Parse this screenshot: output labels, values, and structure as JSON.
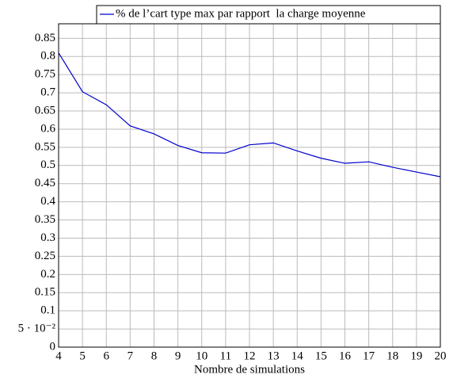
{
  "chart_data": {
    "type": "line",
    "x": [
      4,
      5,
      6,
      7,
      8,
      9,
      10,
      11,
      12,
      13,
      14,
      15,
      16,
      17,
      18,
      19,
      20
    ],
    "series": [
      {
        "name": "% de l’cart type max par rapport  la charge moyenne",
        "color": "#0000cc",
        "values": [
          0.81,
          0.703,
          0.667,
          0.609,
          0.587,
          0.555,
          0.535,
          0.534,
          0.557,
          0.562,
          0.54,
          0.52,
          0.506,
          0.51,
          0.495,
          0.482,
          0.469
        ]
      }
    ],
    "xlabel": "Nombre de simulations",
    "xlim": [
      4,
      20
    ],
    "xticks": [
      4,
      5,
      6,
      7,
      8,
      9,
      10,
      11,
      12,
      13,
      14,
      15,
      16,
      17,
      18,
      19,
      20
    ],
    "ylim": [
      0,
      0.89
    ],
    "yticks": [
      0,
      {
        "value": 0.05,
        "label": "5 · 10⁻²"
      },
      0.1,
      0.15,
      0.2,
      0.25,
      0.3,
      0.35,
      0.4,
      0.45,
      0.5,
      0.55,
      0.6,
      0.65,
      0.7,
      0.75,
      0.8,
      0.85
    ],
    "grid": true,
    "legend": "north east"
  }
}
